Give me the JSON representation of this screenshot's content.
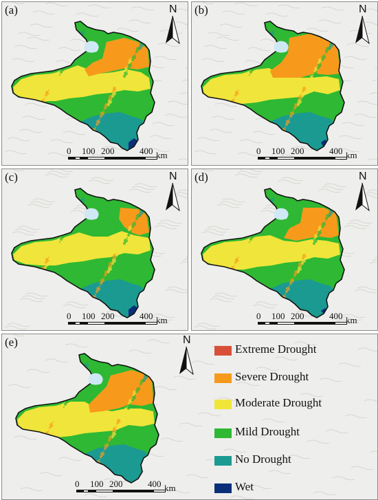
{
  "panels": [
    {
      "label": "(a)"
    },
    {
      "label": "(b)"
    },
    {
      "label": "(c)"
    },
    {
      "label": "(d)"
    },
    {
      "label": "(e)"
    }
  ],
  "north_arrow": {
    "letter": "N",
    "icon": "north-arrow-icon"
  },
  "scale_bar": {
    "ticks": [
      "0",
      "100",
      "200",
      "400"
    ],
    "unit": "km"
  },
  "legend": {
    "items": [
      {
        "label": "Extreme Drought",
        "color": "#d9503a"
      },
      {
        "label": "Severe Drought",
        "color": "#f79a1c"
      },
      {
        "label": "Moderate Drought",
        "color": "#f0e53a"
      },
      {
        "label": "Mild Drought",
        "color": "#2fb833"
      },
      {
        "label": "No Drought",
        "color": "#1b9a92"
      },
      {
        "label": "Wet",
        "color": "#0c2f7a"
      }
    ]
  },
  "colors": {
    "lake": "#cfe8f5",
    "boundary": "#111111",
    "background": "#eeeeec"
  }
}
